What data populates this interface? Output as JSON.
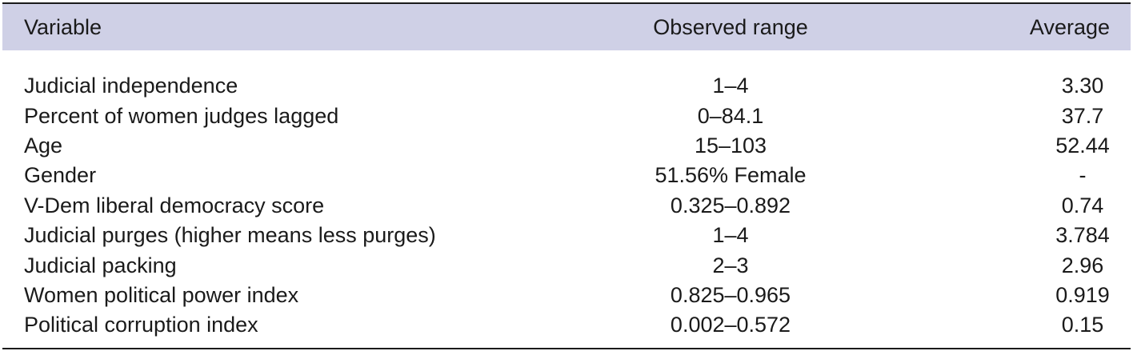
{
  "table": {
    "headers": {
      "variable": "Variable",
      "range": "Observed range",
      "average": "Average"
    },
    "rows": [
      {
        "variable": "Judicial independence",
        "range": "1–4",
        "average": "3.30"
      },
      {
        "variable": "Percent of women judges lagged",
        "range": "0–84.1",
        "average": "37.7"
      },
      {
        "variable": "Age",
        "range": "15–103",
        "average": "52.44"
      },
      {
        "variable": "Gender",
        "range": "51.56% Female",
        "average": "-"
      },
      {
        "variable": "V-Dem liberal democracy score",
        "range": "0.325–0.892",
        "average": "0.74"
      },
      {
        "variable": "Judicial purges (higher means less purges)",
        "range": "1–4",
        "average": "3.784"
      },
      {
        "variable": "Judicial packing",
        "range": "2–3",
        "average": "2.96"
      },
      {
        "variable": "Women political power index",
        "range": "0.825–0.965",
        "average": "0.919"
      },
      {
        "variable": "Political corruption index",
        "range": "0.002–0.572",
        "average": "0.15"
      }
    ]
  },
  "colors": {
    "header_bg": "#cfd0e6",
    "text": "#1a1a1a",
    "rule": "#1a1a1a"
  }
}
